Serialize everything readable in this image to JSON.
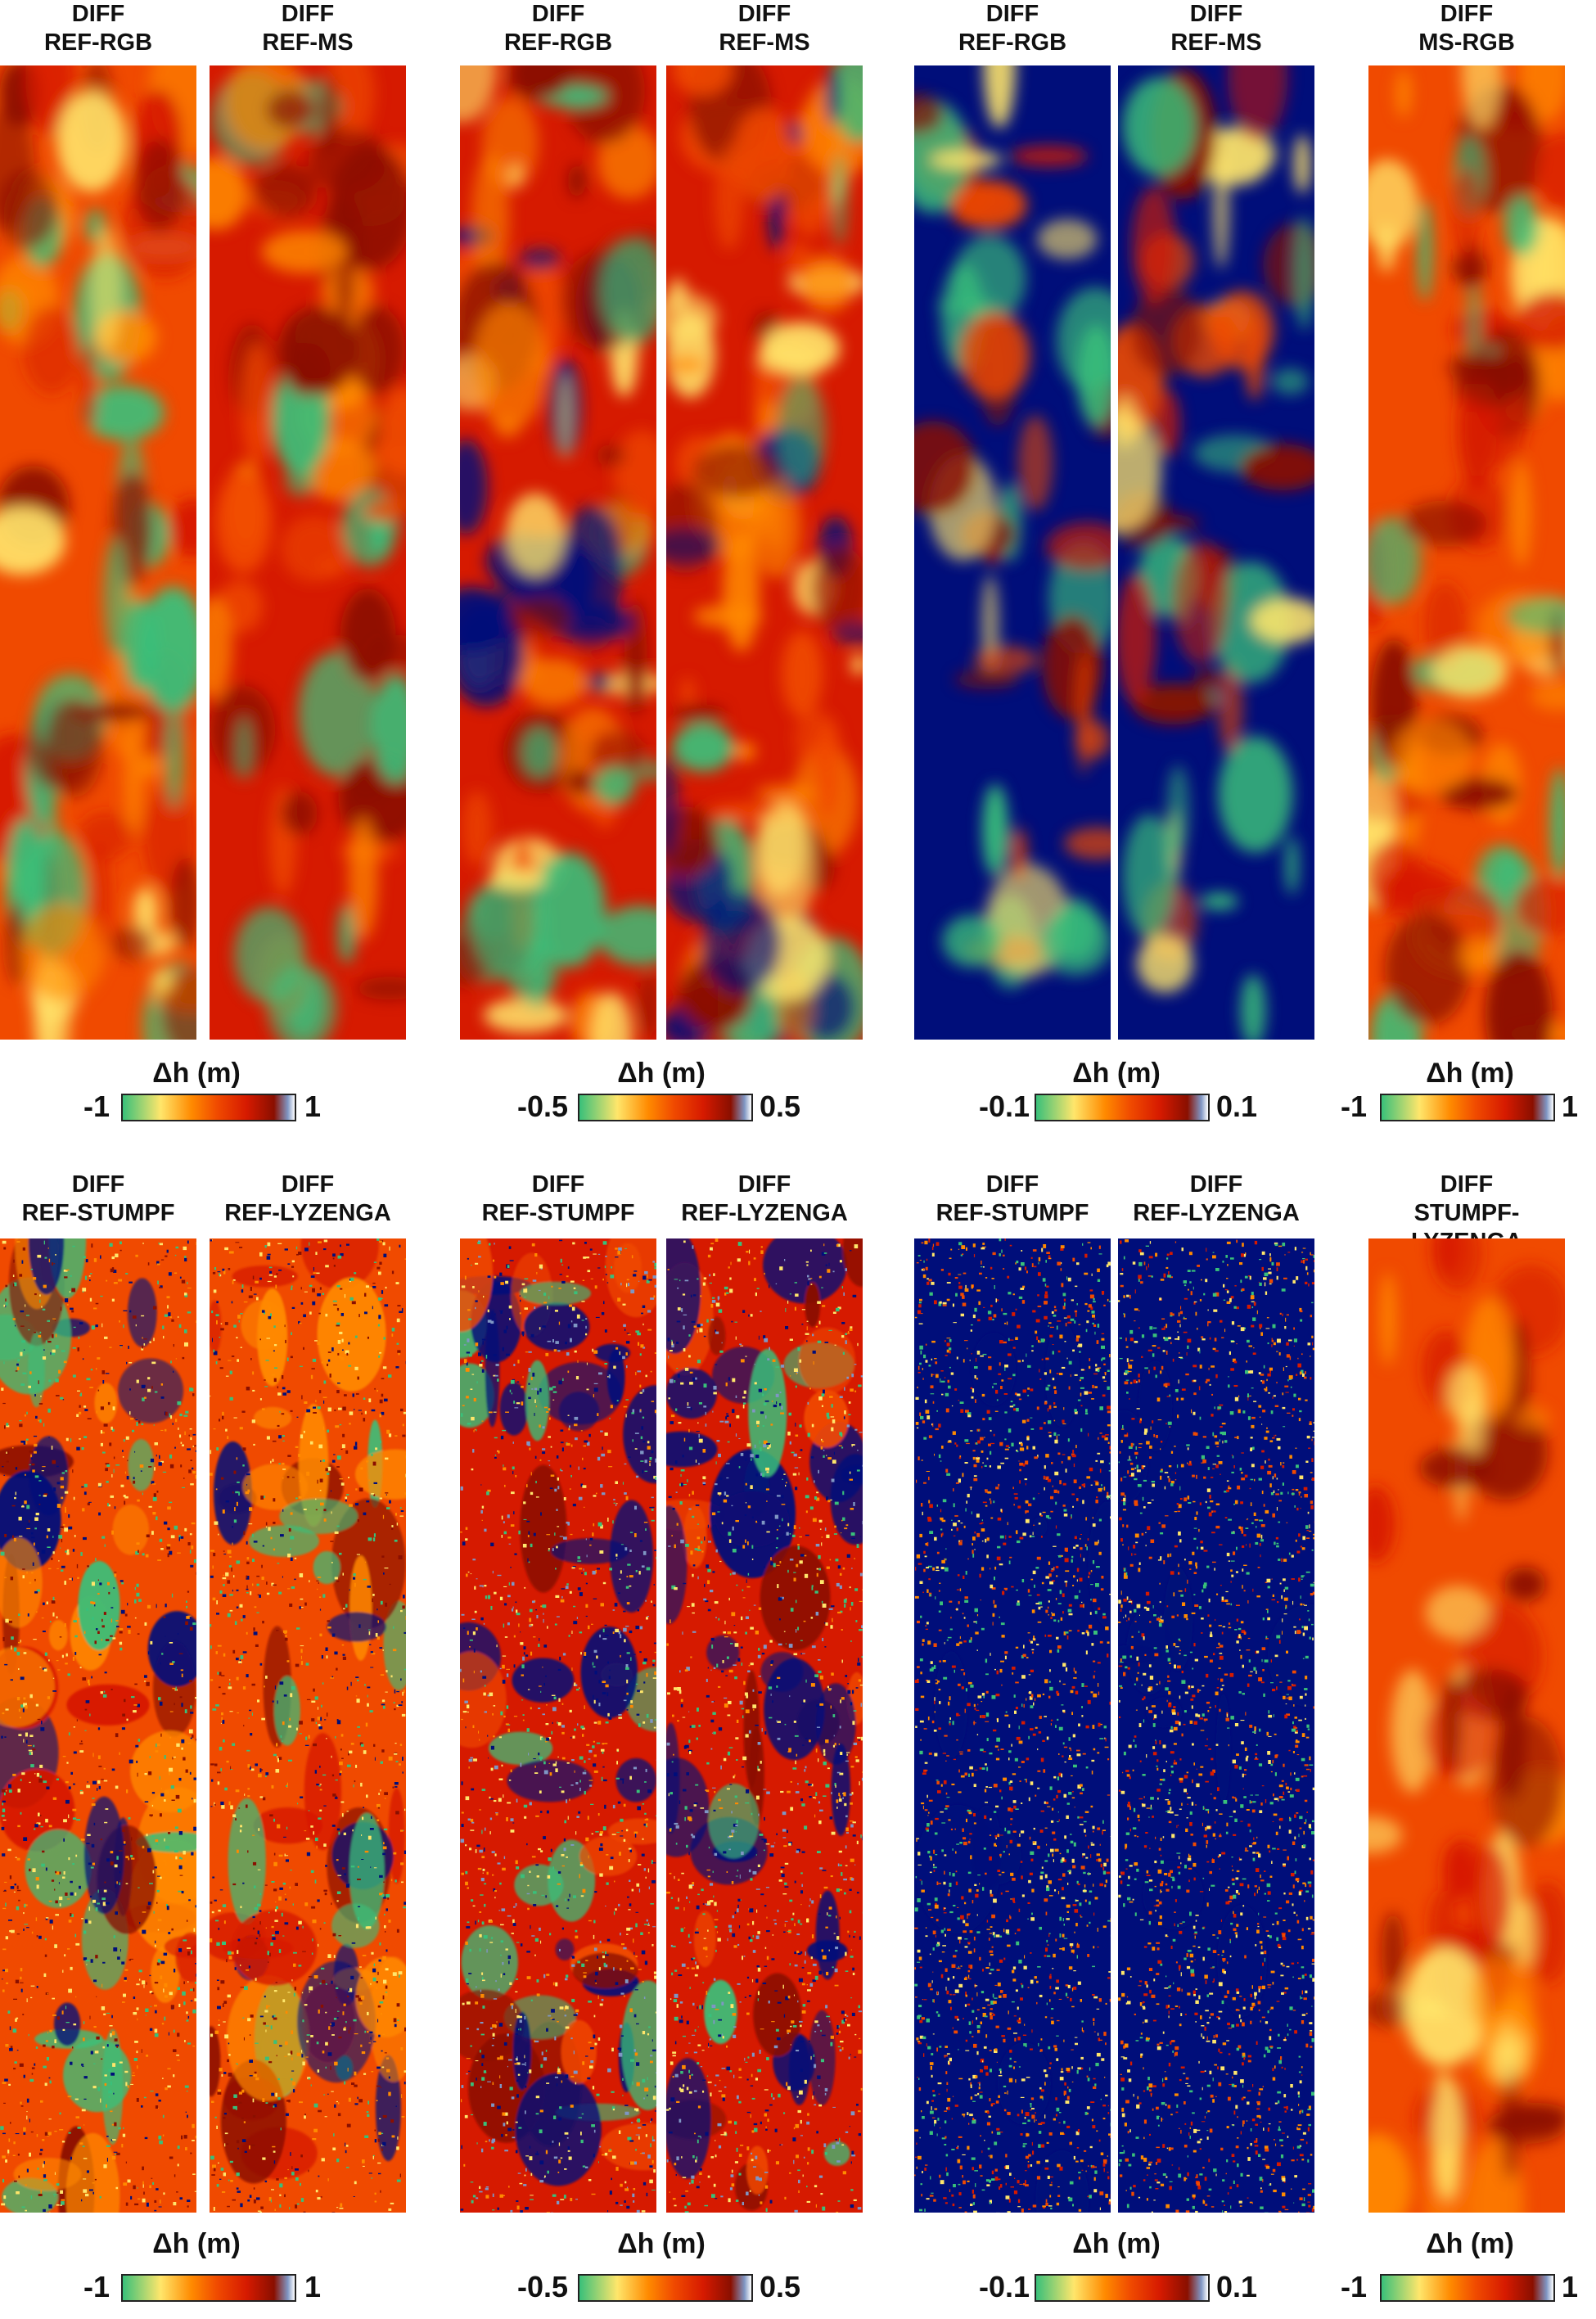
{
  "colors": {
    "navy": "#000e7a",
    "deep_red": "#8a0f00",
    "red": "#d61a00",
    "orange": "#f04a00",
    "amber": "#ff8a00",
    "yellow": "#ffe66b",
    "green": "#39c07a",
    "teal": "#2aa39a",
    "steel": "#7f96c4"
  },
  "rows": [
    {
      "panels": [
        {
          "line1": "DIFF",
          "line2": "REF-RGB",
          "style": "warm-wide"
        },
        {
          "line1": "DIFF",
          "line2": "REF-MS",
          "style": "warm-dark"
        },
        {
          "line1": "DIFF",
          "line2": "REF-RGB",
          "style": "mid-mixed"
        },
        {
          "line1": "DIFF",
          "line2": "REF-MS",
          "style": "mid-mixed"
        },
        {
          "line1": "DIFF",
          "line2": "REF-RGB",
          "style": "sparse-navy"
        },
        {
          "line1": "DIFF",
          "line2": "REF-MS",
          "style": "sparse-navy"
        },
        {
          "line1": "DIFF",
          "line2": "MS-RGB",
          "style": "warm-speckled"
        }
      ],
      "colorbars": [
        {
          "label": "Δh (m)",
          "min": "-1",
          "max": "1"
        },
        {
          "label": "Δh (m)",
          "min": "-0.5",
          "max": "0.5"
        },
        {
          "label": "Δh (m)",
          "min": "-0.1",
          "max": "0.1"
        },
        {
          "label": "Δh (m)",
          "min": "-1",
          "max": "1"
        }
      ]
    },
    {
      "panels": [
        {
          "line1": "DIFF",
          "line2": "REF-STUMPF",
          "style": "noisy-warm"
        },
        {
          "line1": "DIFF",
          "line2": "REF-LYZENGA",
          "style": "noisy-warm"
        },
        {
          "line1": "DIFF",
          "line2": "REF-STUMPF",
          "style": "noisy-mixed"
        },
        {
          "line1": "DIFF",
          "line2": "REF-LYZENGA",
          "style": "noisy-mixed"
        },
        {
          "line1": "DIFF",
          "line2": "REF-STUMPF",
          "style": "noisy-navy"
        },
        {
          "line1": "DIFF",
          "line2": "REF-LYZENGA",
          "style": "noisy-navy"
        },
        {
          "line1": "DIFF",
          "line2": "STUMPF-LYZENGA",
          "style": "warm-smooth"
        }
      ],
      "colorbars": [
        {
          "label": "Δh (m)",
          "min": "-1",
          "max": "1"
        },
        {
          "label": "Δh (m)",
          "min": "-0.5",
          "max": "0.5"
        },
        {
          "label": "Δh (m)",
          "min": "-0.1",
          "max": "0.1"
        },
        {
          "label": "Δh (m)",
          "min": "-1",
          "max": "1"
        }
      ]
    }
  ]
}
